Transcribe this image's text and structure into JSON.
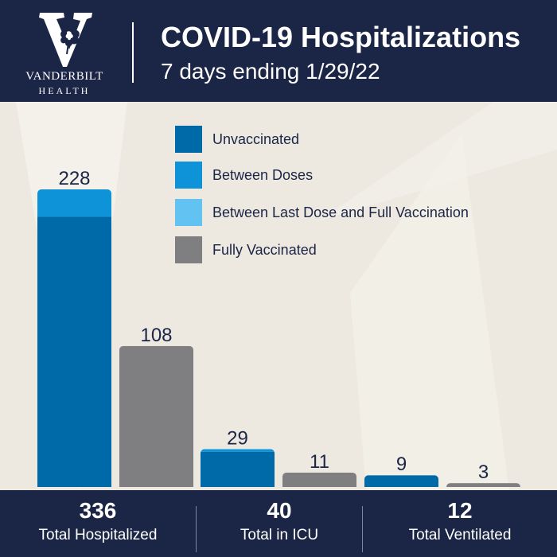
{
  "header": {
    "logo_word1": "VANDERBILT",
    "logo_word2": "HEALTH",
    "title": "COVID-19 Hospitalizations",
    "subtitle": "7 days ending 1/29/22"
  },
  "legend": [
    {
      "label": "Unvaccinated",
      "color": "#0069a8"
    },
    {
      "label": "Between Doses",
      "color": "#0e92d8"
    },
    {
      "label": "Between Last Dose and Full Vaccination",
      "color": "#62c3f2"
    },
    {
      "label": "Fully Vaccinated",
      "color": "#7f7f82"
    }
  ],
  "chart_data": {
    "type": "bar",
    "stacked": true,
    "groups": [
      "Total Hospitalized",
      "Total in ICU",
      "Total Ventilated"
    ],
    "bars": [
      {
        "group": "Total Hospitalized",
        "total": 228,
        "segments": [
          {
            "series": "Unvaccinated",
            "value": 207
          },
          {
            "series": "Between Doses",
            "value": 21
          }
        ]
      },
      {
        "group": "Total Hospitalized",
        "total": 108,
        "segments": [
          {
            "series": "Fully Vaccinated",
            "value": 108
          }
        ]
      },
      {
        "group": "Total in ICU",
        "total": 29,
        "segments": [
          {
            "series": "Unvaccinated",
            "value": 27
          },
          {
            "series": "Between Doses",
            "value": 2
          }
        ]
      },
      {
        "group": "Total in ICU",
        "total": 11,
        "segments": [
          {
            "series": "Fully Vaccinated",
            "value": 11
          }
        ]
      },
      {
        "group": "Total Ventilated",
        "total": 9,
        "segments": [
          {
            "series": "Unvaccinated",
            "value": 9
          }
        ]
      },
      {
        "group": "Total Ventilated",
        "total": 3,
        "segments": [
          {
            "series": "Fully Vaccinated",
            "value": 3
          }
        ]
      }
    ],
    "ylim": [
      0,
      228
    ],
    "legend_position": "top-right",
    "grid": false
  },
  "footer": {
    "stats": [
      {
        "value": "336",
        "label": "Total Hospitalized"
      },
      {
        "value": "40",
        "label": "Total in ICU"
      },
      {
        "value": "12",
        "label": "Total Ventilated"
      }
    ]
  },
  "colors": {
    "navy": "#1b2546",
    "background": "#ede9e1",
    "value_text": "#1b2546"
  }
}
